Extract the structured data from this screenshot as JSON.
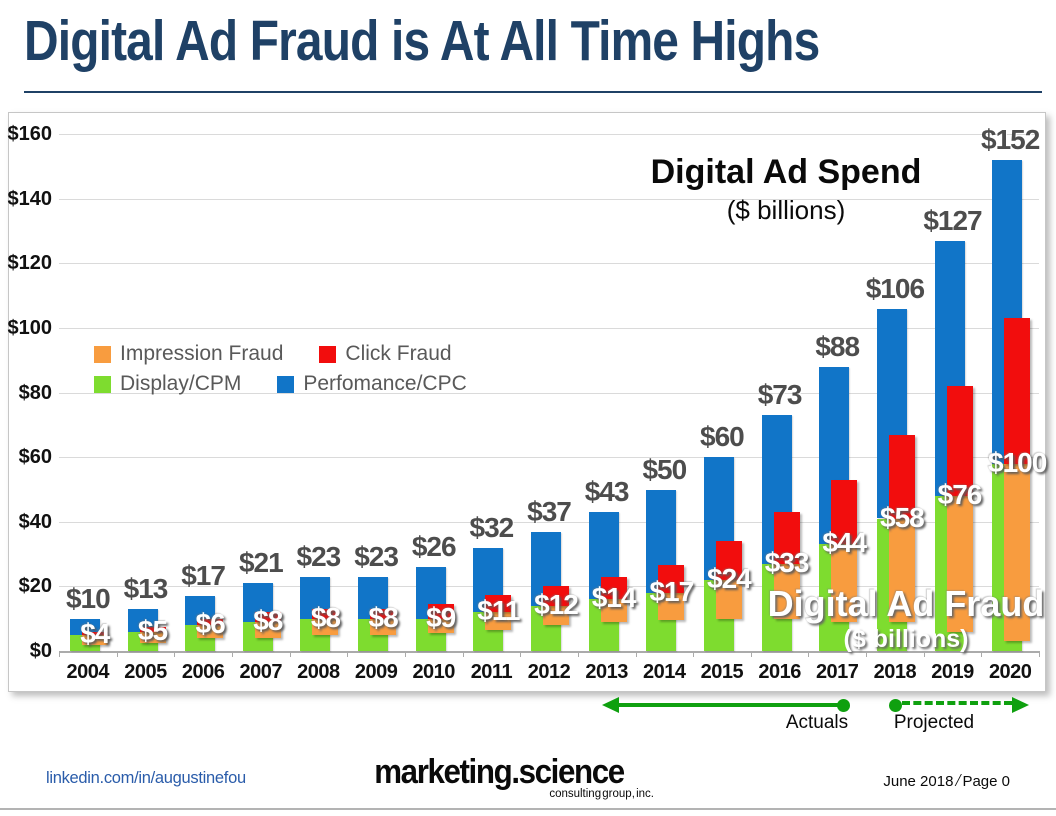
{
  "slide_title": "Digital Ad Fraud is At All Time Highs",
  "chart_data": {
    "type": "bar",
    "overlay_title": "Digital Ad Spend",
    "overlay_subtitle": "($ billions)",
    "fraud_overlay_title": "Digital Ad Fraud",
    "fraud_overlay_subtitle": "($ billions)",
    "categories": [
      "2004",
      "2005",
      "2006",
      "2007",
      "2008",
      "2009",
      "2010",
      "2011",
      "2012",
      "2013",
      "2014",
      "2015",
      "2016",
      "2017",
      "2018",
      "2019",
      "2020"
    ],
    "y_axis": {
      "min": 0,
      "max": 160,
      "step": 20,
      "tick_labels": [
        "$0",
        "$20",
        "$40",
        "$60",
        "$80",
        "$100",
        "$120",
        "$140",
        "$160"
      ]
    },
    "series": [
      {
        "name": "Display/CPM",
        "color": "#7edc2f",
        "group": "spend",
        "position": "bottom",
        "values_estimated": true,
        "values": [
          5,
          6,
          8,
          9,
          10,
          10,
          10,
          12,
          14,
          16,
          18,
          22,
          27,
          33,
          41,
          48,
          58
        ]
      },
      {
        "name": "Perfomance/CPC",
        "color": "#1175c8",
        "group": "spend",
        "position": "top",
        "values_estimated": true,
        "values": [
          5,
          7,
          9,
          12,
          13,
          13,
          16,
          20,
          23,
          27,
          32,
          38,
          46,
          55,
          65,
          79,
          94
        ]
      },
      {
        "name": "Impression Fraud",
        "color": "#f89c3f",
        "group": "fraud",
        "position": "bottom",
        "values_estimated": true,
        "values": [
          3,
          3.5,
          4,
          5,
          5,
          5,
          4.5,
          5.5,
          6,
          7,
          8.5,
          12,
          17,
          24,
          32,
          42,
          55
        ]
      },
      {
        "name": "Click Fraud",
        "color": "#f20d0d",
        "group": "fraud",
        "position": "top",
        "values_estimated": true,
        "values": [
          1,
          1.5,
          2,
          3,
          3,
          3,
          4.5,
          5.5,
          6,
          7,
          8.5,
          12,
          16,
          20,
          26,
          34,
          45
        ]
      }
    ],
    "spend_totals": {
      "values": [
        10,
        13,
        17,
        21,
        23,
        23,
        26,
        32,
        37,
        43,
        50,
        60,
        73,
        88,
        106,
        127,
        152
      ],
      "labels": [
        "$10",
        "$13",
        "$17",
        "$21",
        "$23",
        "$23",
        "$26",
        "$32",
        "$37",
        "$43",
        "$50",
        "$60",
        "$73",
        "$88",
        "$106",
        "$127",
        "$152"
      ]
    },
    "fraud_totals": {
      "values": [
        4,
        5,
        6,
        8,
        8,
        8,
        9,
        11,
        12,
        14,
        17,
        24,
        33,
        44,
        58,
        76,
        100
      ],
      "labels": [
        "$4",
        "$5",
        "$6",
        "$8",
        "$8",
        "$8",
        "$9",
        "$11",
        "$12",
        "$14",
        "$17",
        "$24",
        "$33",
        "$44",
        "$58",
        "$76",
        "$100"
      ]
    },
    "legend_rows": [
      [
        2,
        3
      ],
      [
        0,
        1
      ]
    ],
    "annotations": {
      "actuals_label": "Actuals",
      "projected_label": "Projected",
      "actuals_year_range": [
        "2013",
        "2017"
      ],
      "projected_year_range": [
        "2018",
        "2020"
      ],
      "arrow_color": "#0fa00f"
    }
  },
  "footer": {
    "left_link": "linkedin.com/in/augustinefou",
    "brand": "marketing.science",
    "brand_sub": "consulting group, inc.",
    "date": "June 2018",
    "separator": "/",
    "page": "Page 0"
  }
}
